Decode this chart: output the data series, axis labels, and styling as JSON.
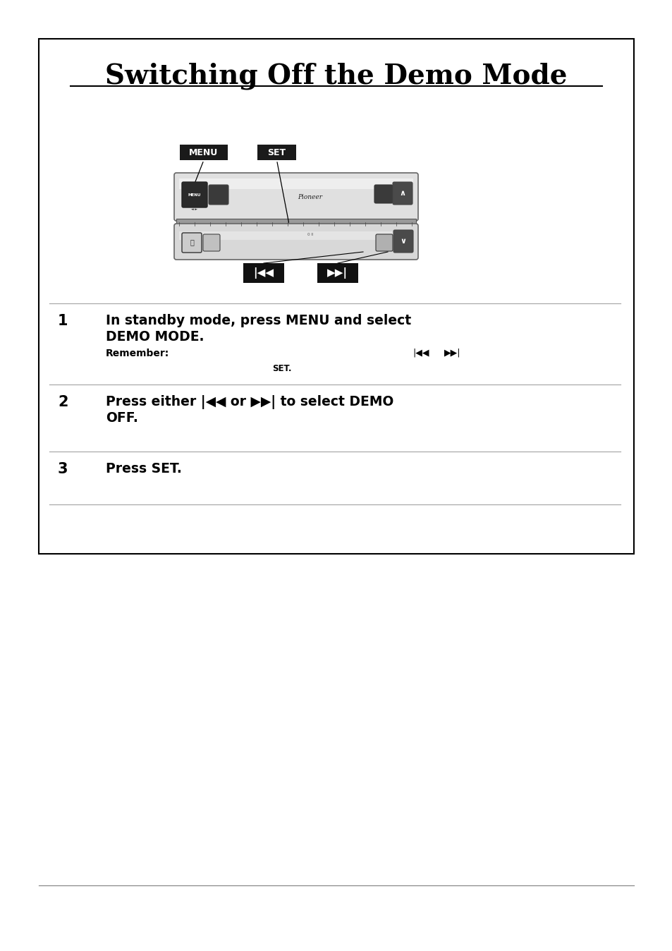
{
  "title": "Switching Off the Demo Mode",
  "bg_color": "#ffffff",
  "step1_text_line1": "In standby mode, press MENU and select",
  "step1_text_line2": "DEMO MODE.",
  "step1_remember_label": "Remember:",
  "step1_remember_detail": "SET.",
  "step2_text_line1": "Press either |<< or >>| to select DEMO",
  "step2_text_line2": "OFF.",
  "step3_text": "Press SET.",
  "menu_label": "MENU",
  "set_label": "SET"
}
